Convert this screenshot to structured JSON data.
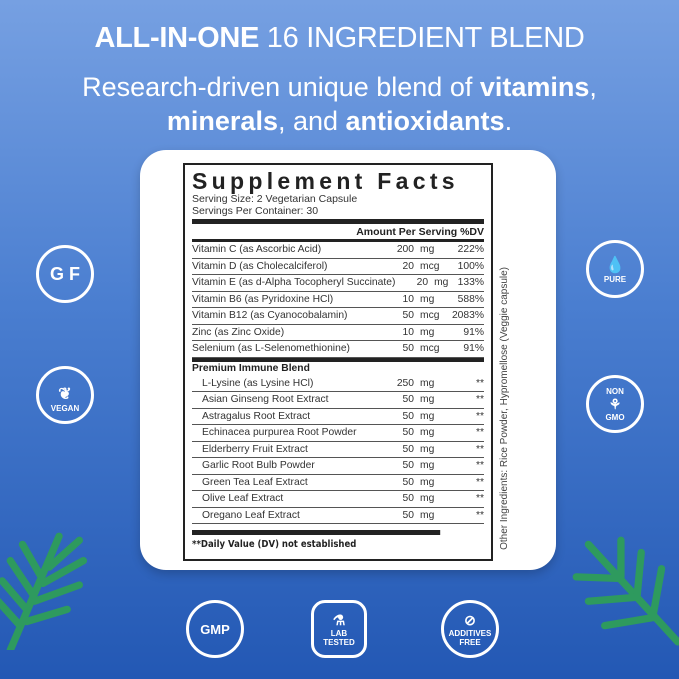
{
  "headline": {
    "bold": "ALL-IN-ONE",
    "rest": "16 INGREDIENT BLEND"
  },
  "subhead": {
    "p1": "Research-driven unique blend of ",
    "b1": "vitamins",
    "p2": ",",
    "b2": "minerals",
    "p3": ", and ",
    "b3": "antioxidants",
    "p4": "."
  },
  "facts": {
    "title": "Supplement Facts",
    "serving_size": "Serving Size: 2 Vegetarian Capsule",
    "servings_per_container": "Servings Per Container: 30",
    "header": "Amount Per Serving %DV",
    "nutrients": [
      {
        "name": "Vitamin C (as Ascorbic Acid)",
        "amount": "200",
        "unit": "mg",
        "dv": "222%"
      },
      {
        "name": "Vitamin D (as Cholecalciferol)",
        "amount": "20",
        "unit": "mcg",
        "dv": "100%"
      },
      {
        "name": "Vitamin E (as d-Alpha Tocopheryl Succinate)",
        "amount": "20",
        "unit": "mg",
        "dv": "133%"
      },
      {
        "name": "Vitamin B6 (as Pyridoxine HCl)",
        "amount": "10",
        "unit": "mg",
        "dv": "588%"
      },
      {
        "name": "Vitamin B12 (as Cyanocobalamin)",
        "amount": "50",
        "unit": "mcg",
        "dv": "2083%"
      },
      {
        "name": "Zinc (as Zinc Oxide)",
        "amount": "10",
        "unit": "mg",
        "dv": "91%"
      },
      {
        "name": "Selenium (as L-Selenomethionine)",
        "amount": "50",
        "unit": "mcg",
        "dv": "91%"
      }
    ],
    "blend_title": "Premium Immune Blend",
    "blend": [
      {
        "name": "L-Lysine (as Lysine HCl)",
        "amount": "250",
        "unit": "mg",
        "dv": "**"
      },
      {
        "name": "Asian Ginseng Root Extract",
        "amount": "50",
        "unit": "mg",
        "dv": "**"
      },
      {
        "name": "Astragalus Root Extract",
        "amount": "50",
        "unit": "mg",
        "dv": "**"
      },
      {
        "name": "Echinacea purpurea Root Powder",
        "amount": "50",
        "unit": "mg",
        "dv": "**"
      },
      {
        "name": "Elderberry Fruit Extract",
        "amount": "50",
        "unit": "mg",
        "dv": "**"
      },
      {
        "name": "Garlic Root Bulb Powder",
        "amount": "50",
        "unit": "mg",
        "dv": "**"
      },
      {
        "name": "Green Tea Leaf Extract",
        "amount": "50",
        "unit": "mg",
        "dv": "**"
      },
      {
        "name": "Olive Leaf Extract",
        "amount": "50",
        "unit": "mg",
        "dv": "**"
      },
      {
        "name": "Oregano Leaf Extract",
        "amount": "50",
        "unit": "mg",
        "dv": "**"
      }
    ],
    "footnote": "**Daily Value (DV) not established",
    "other_ingredients": "Other Ingredients: Rice Powder, Hypromellose (Veggie capsule)"
  },
  "badges": {
    "gf": "G F",
    "vegan": "VEGAN",
    "pure": "PURE",
    "non": "NON",
    "gmo": "GMO",
    "gmp": "GMP",
    "lab": "LAB TESTED",
    "additives": "ADDITIVES FREE"
  },
  "colors": {
    "bg_top": "#76a0e2",
    "bg_bottom": "#2358b4",
    "leaf": "#2e9a5e"
  }
}
